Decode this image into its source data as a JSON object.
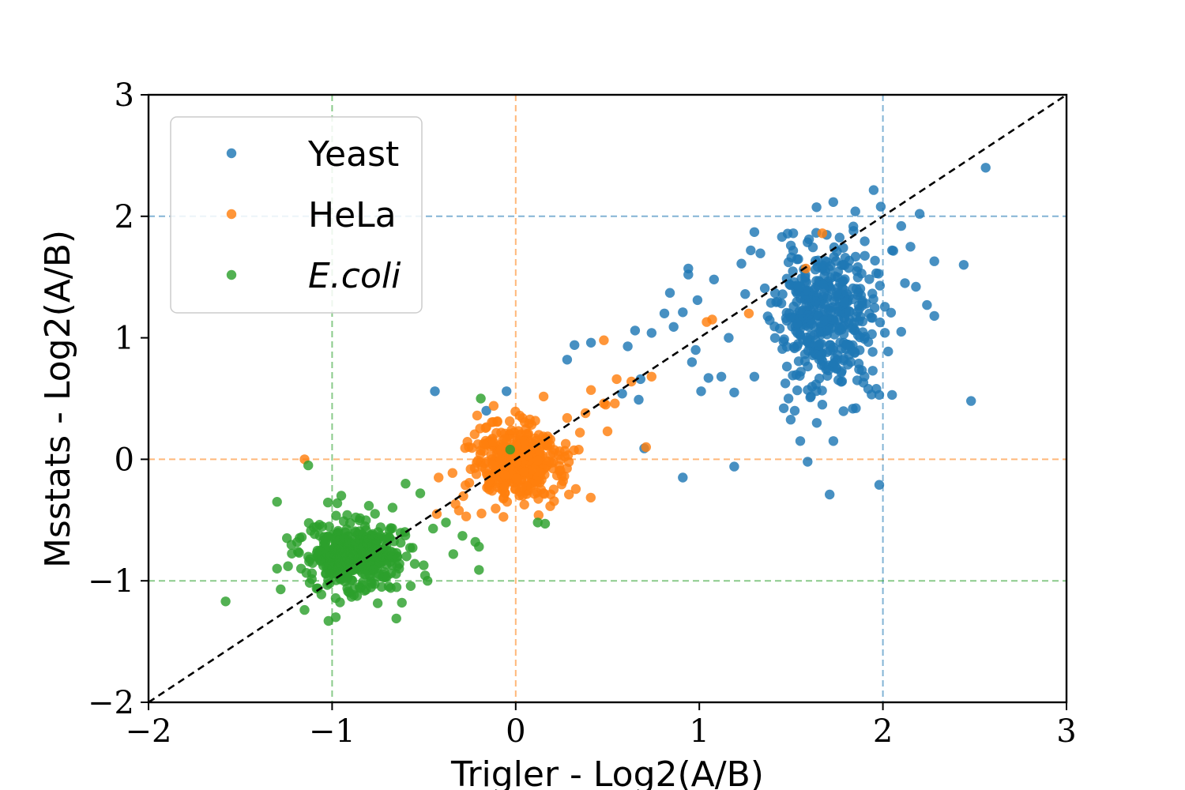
{
  "chart_data": {
    "type": "scatter",
    "title": "",
    "xlabel": "Trigler - Log2(A/B)",
    "ylabel": "Msstats - Log2(A/B)",
    "xlim": [
      -2,
      3
    ],
    "ylim": [
      -2,
      3
    ],
    "xticks": [
      -2,
      -1,
      0,
      1,
      2,
      3
    ],
    "yticks": [
      -2,
      -1,
      0,
      1,
      2,
      3
    ],
    "xtick_labels": [
      "−2",
      "−1",
      "0",
      "1",
      "2",
      "3"
    ],
    "ytick_labels": [
      "−2",
      "−1",
      "0",
      "1",
      "2",
      "3"
    ],
    "grid": false,
    "legend_position": "top-left",
    "diagonal_line": {
      "from": [
        -2,
        -2
      ],
      "to": [
        3,
        3
      ],
      "color": "#000000",
      "style": "dashed"
    },
    "series": [
      {
        "name": "Yeast",
        "italic": false,
        "color": "#1f77b4",
        "reference_lines": {
          "x": 2,
          "y": 2
        },
        "cluster": {
          "center": [
            1.68,
            1.18
          ],
          "n": 420,
          "sx": 0.13,
          "sy": 0.3,
          "seed": 11
        },
        "points": [
          [
            2.56,
            2.4
          ],
          [
            2.44,
            1.6
          ],
          [
            2.48,
            0.48
          ],
          [
            1.98,
            -0.21
          ],
          [
            1.71,
            -0.29
          ],
          [
            1.19,
            -0.06
          ],
          [
            0.91,
            -0.15
          ],
          [
            1.59,
            -0.02
          ],
          [
            2.05,
            0.53
          ],
          [
            1.98,
            0.53
          ],
          [
            1.84,
            1.88
          ],
          [
            1.85,
            2.04
          ],
          [
            1.3,
            1.87
          ],
          [
            1.73,
            0.15
          ],
          [
            1.55,
            0.15
          ],
          [
            0.32,
            0.94
          ],
          [
            0.28,
            0.82
          ],
          [
            0.41,
            0.96
          ],
          [
            0.61,
            0.93
          ],
          [
            0.65,
            1.06
          ],
          [
            0.74,
            1.04
          ],
          [
            0.81,
            1.2
          ],
          [
            0.84,
            1.37
          ],
          [
            0.94,
            1.57
          ],
          [
            0.94,
            1.52
          ],
          [
            1.08,
            1.48
          ],
          [
            0.99,
            1.31
          ],
          [
            0.91,
            1.21
          ],
          [
            0.86,
            1.09
          ],
          [
            0.98,
            0.9
          ],
          [
            0.96,
            0.8
          ],
          [
            1.05,
            0.67
          ],
          [
            1.12,
            0.68
          ],
          [
            1.01,
            0.56
          ],
          [
            1.19,
            0.55
          ],
          [
            0.67,
            0.49
          ],
          [
            0.7,
            0.09
          ],
          [
            0.58,
            0.54
          ],
          [
            0.68,
            0.66
          ],
          [
            -0.44,
            0.56
          ],
          [
            -0.16,
            0.4
          ],
          [
            -0.05,
            0.56
          ],
          [
            1.86,
            0.65
          ],
          [
            1.92,
            0.58
          ],
          [
            2.1,
            1.92
          ],
          [
            2.2,
            2.02
          ],
          [
            2.15,
            1.75
          ],
          [
            2.28,
            1.63
          ],
          [
            2.18,
            1.42
          ],
          [
            2.24,
            1.27
          ],
          [
            2.28,
            1.18
          ],
          [
            2.1,
            1.05
          ],
          [
            1.94,
            1.03
          ],
          [
            1.28,
            1.72
          ],
          [
            1.45,
            1.83
          ],
          [
            1.25,
            1.36
          ],
          [
            1.16,
            1.0
          ],
          [
            1.3,
            0.68
          ],
          [
            1.46,
            0.42
          ],
          [
            1.52,
            0.4
          ],
          [
            1.64,
            0.3
          ],
          [
            1.67,
            0.45
          ],
          [
            1.87,
            0.74
          ],
          [
            2.12,
            1.45
          ],
          [
            2.05,
            1.72
          ]
        ]
      },
      {
        "name": "HeLa",
        "italic": false,
        "color": "#ff7f0e",
        "reference_lines": {
          "x": 0,
          "y": 0
        },
        "cluster": {
          "center": [
            0.0,
            -0.04
          ],
          "n": 380,
          "sx": 0.12,
          "sy": 0.17,
          "seed": 23
        },
        "points": [
          [
            1.67,
            1.86
          ],
          [
            1.58,
            1.57
          ],
          [
            1.27,
            1.2
          ],
          [
            1.07,
            1.15
          ],
          [
            1.04,
            1.13
          ],
          [
            0.48,
            0.98
          ],
          [
            0.41,
            0.57
          ],
          [
            0.48,
            0.46
          ],
          [
            0.54,
            0.46
          ],
          [
            0.55,
            0.66
          ],
          [
            0.63,
            0.64
          ],
          [
            0.74,
            0.68
          ],
          [
            0.71,
            0.1
          ],
          [
            0.5,
            0.23
          ],
          [
            0.49,
            0.45
          ],
          [
            -1.15,
            0.0
          ],
          [
            -0.42,
            -0.15
          ],
          [
            -0.43,
            -0.45
          ],
          [
            -0.27,
            -0.47
          ],
          [
            0.29,
            -0.29
          ],
          [
            0.38,
            0.38
          ],
          [
            0.28,
            0.34
          ],
          [
            0.35,
            0.22
          ],
          [
            -0.21,
            0.36
          ],
          [
            -0.12,
            0.44
          ]
        ]
      },
      {
        "name": "E.coli",
        "italic": true,
        "color": "#2ca02c",
        "reference_lines": {
          "x": -1,
          "y": -1
        },
        "cluster": {
          "center": [
            -0.87,
            -0.79
          ],
          "n": 420,
          "sx": 0.13,
          "sy": 0.14,
          "seed": 37
        },
        "points": [
          [
            -1.58,
            -1.17
          ],
          [
            -1.28,
            -1.07
          ],
          [
            -1.15,
            -1.24
          ],
          [
            -1.02,
            -1.33
          ],
          [
            -0.98,
            -1.3
          ],
          [
            -0.65,
            -1.31
          ],
          [
            -0.48,
            -1.0
          ],
          [
            -0.2,
            -0.72
          ],
          [
            -0.22,
            -0.68
          ],
          [
            -0.2,
            -0.91
          ],
          [
            -0.29,
            -0.63
          ],
          [
            0.12,
            -0.52
          ],
          [
            0.16,
            -0.53
          ],
          [
            -0.19,
            0.5
          ],
          [
            -0.03,
            0.08
          ],
          [
            -1.13,
            -0.05
          ],
          [
            -1.3,
            -0.35
          ],
          [
            -0.95,
            -0.3
          ],
          [
            -0.6,
            -0.2
          ],
          [
            -0.52,
            -0.28
          ],
          [
            -0.45,
            -0.57
          ],
          [
            -0.38,
            -0.52
          ],
          [
            -0.34,
            -0.78
          ],
          [
            -1.1,
            -0.56
          ],
          [
            -1.24,
            -0.88
          ],
          [
            -1.3,
            -0.9
          ],
          [
            -1.18,
            -0.77
          ],
          [
            -0.55,
            -0.86
          ],
          [
            -0.62,
            -1.18
          ],
          [
            -0.73,
            -1.05
          ]
        ]
      }
    ]
  }
}
